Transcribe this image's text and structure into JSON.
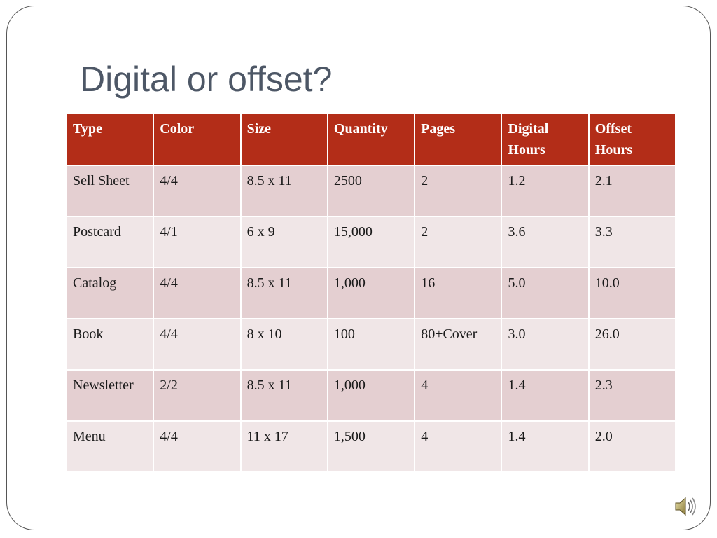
{
  "slide": {
    "title": "Digital or offset?"
  },
  "table": {
    "headers": [
      "Type",
      "Color",
      "Size",
      "Quantity",
      "Pages",
      "Digital Hours",
      "Offset Hours"
    ],
    "rows": [
      [
        "Sell Sheet",
        "4/4",
        "8.5 x 11",
        "2500",
        "2",
        "1.2",
        "2.1"
      ],
      [
        "Postcard",
        "4/1",
        "6 x 9",
        "15,000",
        "2",
        "3.6",
        "3.3"
      ],
      [
        "Catalog",
        "4/4",
        "8.5 x 11",
        "1,000",
        "16",
        "5.0",
        "10.0"
      ],
      [
        "Book",
        "4/4",
        "8 x 10",
        "100",
        "80+Cover",
        "3.0",
        "26.0"
      ],
      [
        "Newsletter",
        "2/2",
        "8.5 x 11",
        "1,000",
        "4",
        "1.4",
        "2.3"
      ],
      [
        "Menu",
        "4/4",
        "11 x 17",
        "1,500",
        "4",
        "1.4",
        "2.0"
      ]
    ]
  },
  "colors": {
    "header_bg": "#b32d18",
    "row_odd": "#e4cfd1",
    "row_even": "#f0e6e7",
    "title": "#4d5766"
  },
  "icons": {
    "audio": "speaker-icon"
  }
}
